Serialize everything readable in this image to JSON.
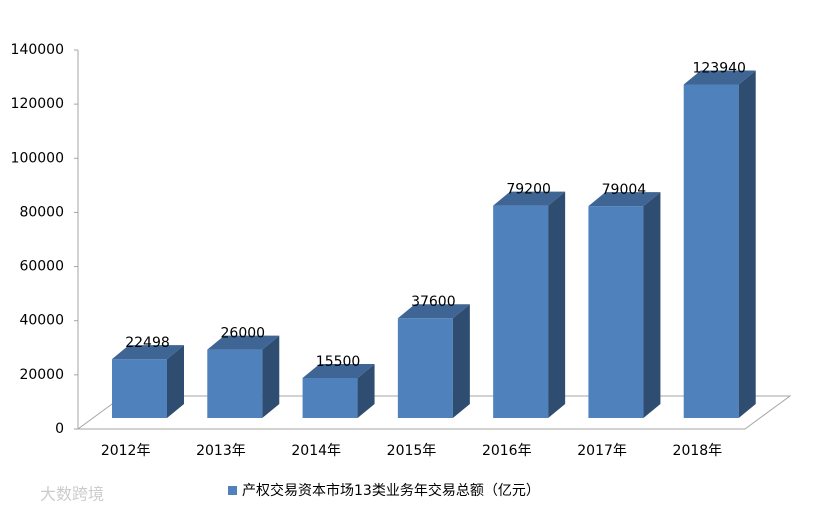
{
  "chart_data": {
    "type": "bar3d",
    "categories": [
      "2012年",
      "2013年",
      "2014年",
      "2015年",
      "2016年",
      "2017年",
      "2018年"
    ],
    "series": [
      {
        "name": "产权交易资本市场13类业务年交易总额（亿元）",
        "color": "#4f81bd",
        "values": [
          22498,
          26000,
          15500,
          37600,
          79200,
          79004,
          123940
        ]
      }
    ],
    "ylim": [
      0,
      140000
    ],
    "yticks": [
      0,
      20000,
      40000,
      60000,
      80000,
      100000,
      120000,
      140000
    ],
    "grid": false,
    "legend": "bottom",
    "watermark": "大数跨境"
  }
}
